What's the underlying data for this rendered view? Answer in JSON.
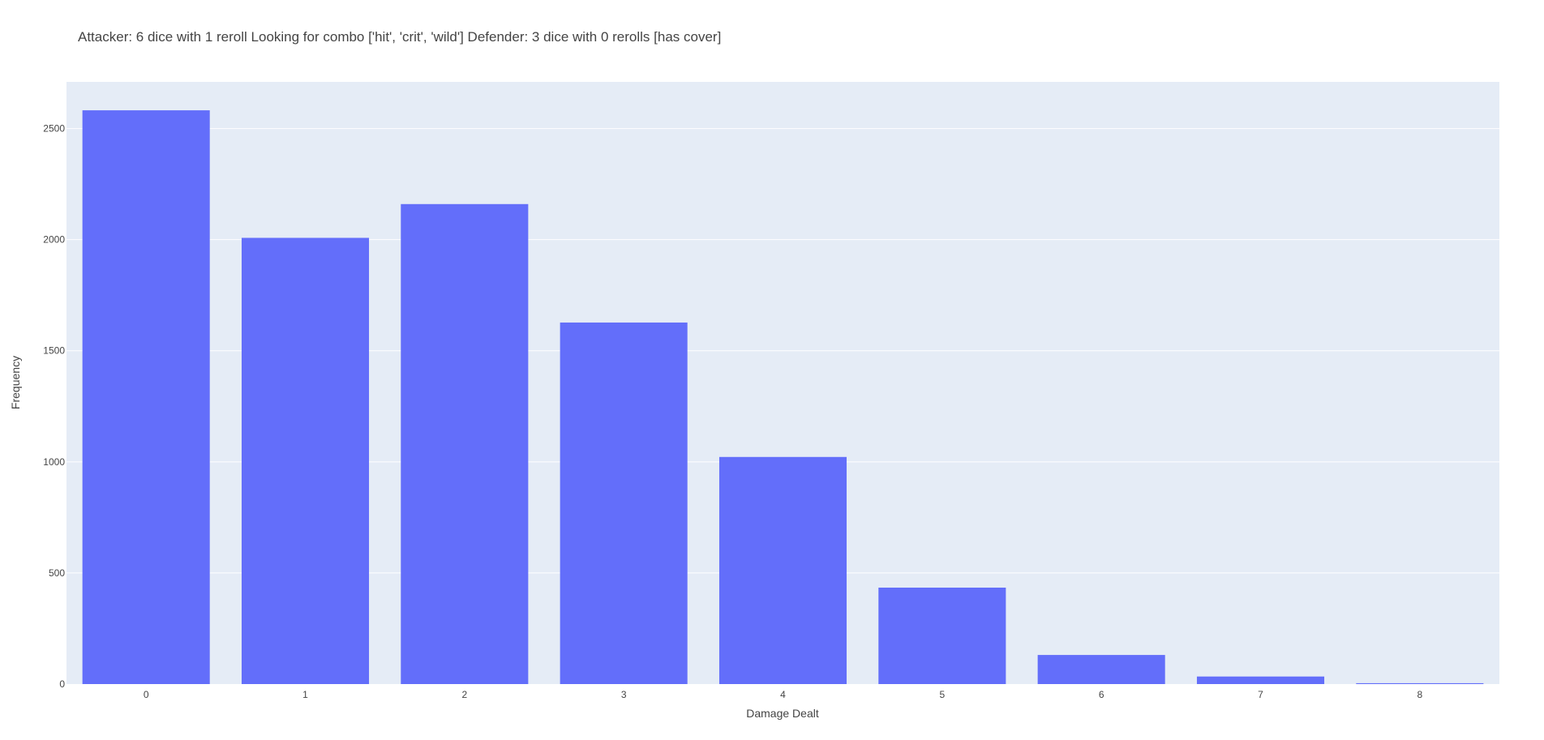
{
  "chart_data": {
    "type": "bar",
    "title": "Attacker: 6 dice with 1 reroll Looking for combo ['hit', 'crit', 'wild'] Defender: 3 dice with 0 rerolls [has cover]",
    "xlabel": "Damage Dealt",
    "ylabel": "Frequency",
    "categories": [
      "0",
      "1",
      "2",
      "3",
      "4",
      "5",
      "6",
      "7",
      "8"
    ],
    "values": [
      2582,
      2008,
      2160,
      1627,
      1022,
      434,
      131,
      34,
      4
    ],
    "ylim": [
      0,
      2710
    ],
    "yticks": [
      0,
      500,
      1000,
      1500,
      2000,
      2500
    ],
    "ytick_labels": [
      "0",
      "500",
      "1000",
      "1500",
      "2000",
      "2500"
    ],
    "grid": true,
    "legend": "none",
    "colors": {
      "bar": "#636efa",
      "plot_background": "#e5ecf6",
      "grid": "#ffffff",
      "text": "#444444"
    }
  }
}
